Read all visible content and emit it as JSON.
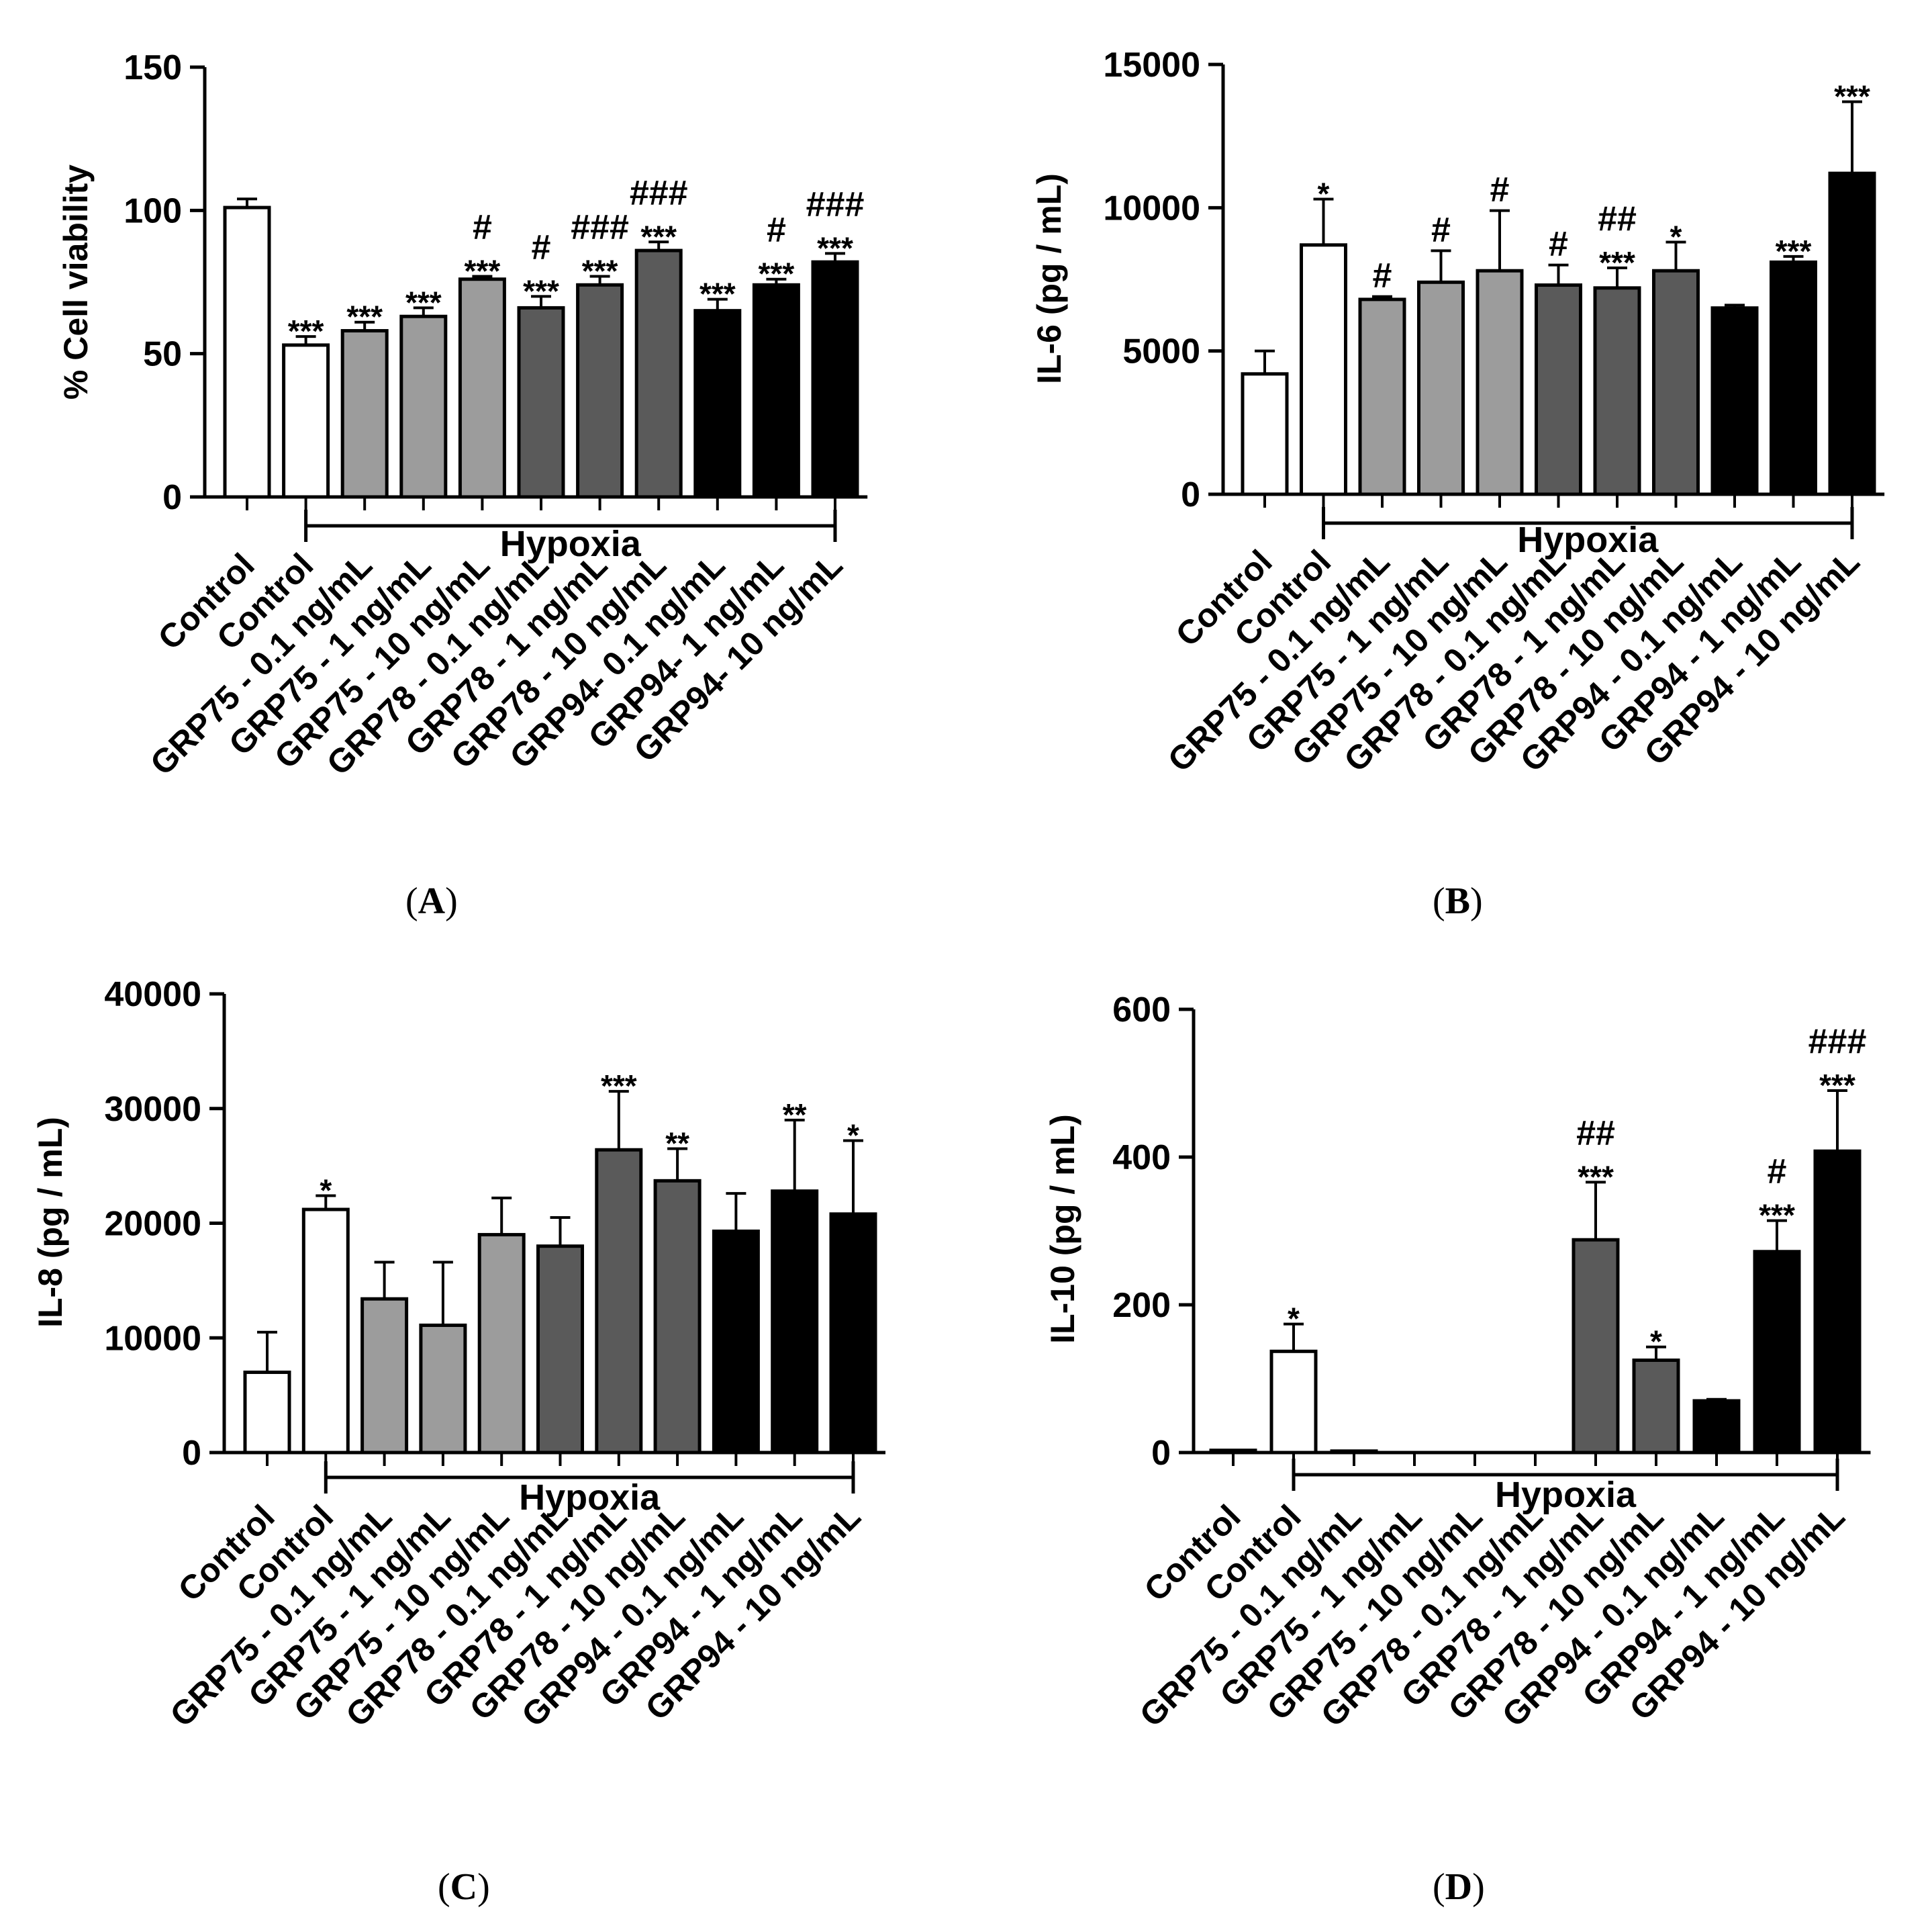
{
  "chart_data": [
    {
      "id": "A",
      "type": "bar",
      "caption_open": "(",
      "panel_label": "A",
      "caption_close": ")",
      "ylabel": "% Cell viability",
      "ylim": [
        0,
        150
      ],
      "yticks": [
        0,
        50,
        100,
        150
      ],
      "group_label": "Hypoxia",
      "categories": [
        "Control",
        "Control",
        "GRP75 - 0.1 ng/mL",
        "GRP75 - 1 ng/mL",
        "GRP75 - 10 ng/mL",
        "GRP78 - 0.1 ng/mL",
        "GRP78 - 1 ng/mL",
        "GRP78 - 10 ng/mL",
        "GRP94- 0.1 ng/mL",
        "GRP94- 1 ng/mL",
        "GRP94- 10 ng/mL"
      ],
      "values": [
        101,
        53,
        58,
        63,
        76,
        66,
        74,
        86,
        65,
        74,
        82
      ],
      "errors": [
        3,
        3,
        3,
        3,
        1,
        4,
        3,
        3,
        4,
        2,
        3
      ],
      "fills": [
        "#ffffff",
        "#ffffff",
        "#9c9c9c",
        "#9c9c9c",
        "#9c9c9c",
        "#5a5a5a",
        "#5a5a5a",
        "#5a5a5a",
        "#000000",
        "#000000",
        "#000000"
      ],
      "annotations": [
        [],
        [
          "***"
        ],
        [
          "***"
        ],
        [
          "***"
        ],
        [
          "***",
          "#"
        ],
        [
          "***",
          "#"
        ],
        [
          "***",
          "###"
        ],
        [
          "***",
          "###"
        ],
        [
          "***"
        ],
        [
          "***",
          "#"
        ],
        [
          "***",
          "###"
        ]
      ]
    },
    {
      "id": "B",
      "type": "bar",
      "caption_open": "(",
      "panel_label": "B",
      "caption_close": ")",
      "ylabel": "IL-6 (pg / mL)",
      "ylim": [
        0,
        15000
      ],
      "yticks": [
        0,
        5000,
        10000,
        15000
      ],
      "group_label": "Hypoxia",
      "categories": [
        "Control",
        "Control",
        "GRP75 - 0.1 ng/mL",
        "GRP75 - 1 ng/mL",
        "GRP75 - 10 ng/mL",
        "GRP78 - 0.1 ng/mL",
        "GRP78 - 1 ng/mL",
        "GRP78 - 10 ng/mL",
        "GRP94 - 0.1 ng/mL",
        "GRP94 - 1 ng/mL",
        "GRP94 - 10 ng/mL"
      ],
      "values": [
        4200,
        8700,
        6800,
        7400,
        7800,
        7300,
        7200,
        7800,
        6500,
        8100,
        11200
      ],
      "errors": [
        800,
        1600,
        100,
        1100,
        2100,
        700,
        700,
        1000,
        100,
        200,
        2500
      ],
      "fills": [
        "#ffffff",
        "#ffffff",
        "#9c9c9c",
        "#9c9c9c",
        "#9c9c9c",
        "#5a5a5a",
        "#5a5a5a",
        "#5a5a5a",
        "#000000",
        "#000000",
        "#000000"
      ],
      "annotations": [
        [],
        [
          "*"
        ],
        [
          "#"
        ],
        [
          "#"
        ],
        [
          "#"
        ],
        [
          "#"
        ],
        [
          "***",
          "##"
        ],
        [
          "*"
        ],
        [],
        [
          "***"
        ],
        [
          "***"
        ]
      ]
    },
    {
      "id": "C",
      "type": "bar",
      "caption_open": "(",
      "panel_label": "C",
      "caption_close": ")",
      "ylabel": "IL-8 (pg / mL)",
      "ylim": [
        0,
        40000
      ],
      "yticks": [
        0,
        10000,
        20000,
        30000,
        40000
      ],
      "group_label": "Hypoxia",
      "categories": [
        "Control",
        "Control",
        "GRP75 - 0.1 ng/mL",
        "GRP75 - 1 ng/mL",
        "GRP75 - 10 ng/mL",
        "GRP78 - 0.1 ng/mL",
        "GRP78 - 1 ng/mL",
        "GRP78 - 10 ng/mL",
        "GRP94 - 0.1 ng/mL",
        "GRP94 - 1 ng/mL",
        "GRP94 - 10 ng/mL"
      ],
      "values": [
        7000,
        21200,
        13400,
        11100,
        19000,
        18000,
        26400,
        23700,
        19300,
        22800,
        20800
      ],
      "errors": [
        3500,
        1200,
        3200,
        5500,
        3200,
        2500,
        5100,
        2800,
        3300,
        6200,
        6400
      ],
      "fills": [
        "#ffffff",
        "#ffffff",
        "#9c9c9c",
        "#9c9c9c",
        "#9c9c9c",
        "#5a5a5a",
        "#5a5a5a",
        "#5a5a5a",
        "#000000",
        "#000000",
        "#000000"
      ],
      "annotations": [
        [],
        [
          "*"
        ],
        [],
        [],
        [],
        [],
        [
          "***"
        ],
        [
          "**"
        ],
        [],
        [
          "**"
        ],
        [
          "*"
        ]
      ]
    },
    {
      "id": "D",
      "type": "bar",
      "caption_open": "(",
      "panel_label": "D",
      "caption_close": ")",
      "ylabel": "IL-10 (pg / mL)",
      "ylim": [
        0,
        600
      ],
      "yticks": [
        0,
        200,
        400,
        600
      ],
      "group_label": "Hypoxia",
      "categories": [
        "Control",
        "Control",
        "GRP75 - 0.1 ng/mL",
        "GRP75 - 1 ng/mL",
        "GRP75 - 10 ng/mL",
        "GRP78 - 0.1 ng/mL",
        "GRP78 - 1 ng/mL",
        "GRP78 - 10 ng/mL",
        "GRP94 - 0.1 ng/mL",
        "GRP94 - 1 ng/mL",
        "GRP94 - 10 ng/mL"
      ],
      "values": [
        3,
        137,
        2,
        0,
        0,
        0,
        288,
        125,
        70,
        272,
        408
      ],
      "errors": [
        0,
        37,
        0,
        0,
        0,
        0,
        78,
        18,
        2,
        42,
        82
      ],
      "fills": [
        "#ffffff",
        "#ffffff",
        "#9c9c9c",
        "#9c9c9c",
        "#9c9c9c",
        "#5a5a5a",
        "#5a5a5a",
        "#5a5a5a",
        "#000000",
        "#000000",
        "#000000"
      ],
      "annotations": [
        [],
        [
          "*"
        ],
        [],
        [],
        [],
        [],
        [
          "***",
          "##"
        ],
        [
          "*"
        ],
        [],
        [
          "***",
          "#"
        ],
        [
          "***",
          "###"
        ]
      ]
    }
  ]
}
